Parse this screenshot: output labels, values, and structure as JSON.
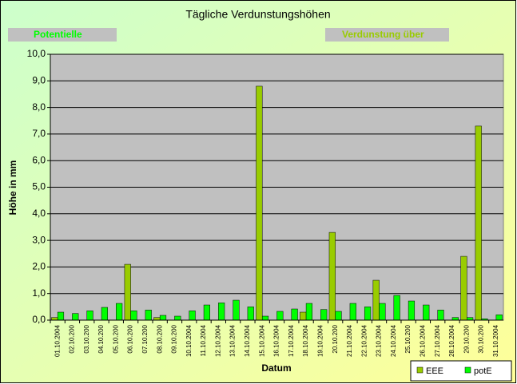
{
  "chart_data": {
    "type": "bar",
    "title": "Tägliche Verdunstungshöhen",
    "annotations": [
      "Potentielle",
      "Verdunstung über"
    ],
    "x_label": "Datum",
    "y_label": "Höhe in mm",
    "categories": [
      "01.10.2004",
      "02.10.200",
      "03.10.200",
      "04.10.200",
      "05.10.200",
      "06.10.200",
      "07.10.200",
      "08.10.200",
      "09.10.200",
      "10.10.2004",
      "11.10.2004",
      "12.10.2004",
      "13.10.2004",
      "14.10.2004",
      "15.10.2004",
      "16.10.2004",
      "17.10.2004",
      "18.10.2004",
      "19.10.2004",
      "20.10.200",
      "21.10.2004",
      "22.10.2004",
      "23.10.2004",
      "24.10.2004",
      "25.10.200",
      "26.10.2004",
      "27.10.2004",
      "28.10.2004",
      "29.10.200",
      "30.10.200",
      "31.10.2004"
    ],
    "series": [
      {
        "name": "EEE",
        "color": "#99cc00",
        "values": [
          0.1,
          0,
          0,
          0,
          0,
          2.1,
          0,
          0.1,
          0,
          0,
          0,
          0,
          0,
          0,
          8.8,
          0,
          0,
          0.3,
          0,
          3.3,
          0,
          0,
          1.5,
          0,
          0,
          0,
          0,
          0,
          2.4,
          7.3,
          0
        ]
      },
      {
        "name": "potE",
        "color": "#00ff00",
        "values": [
          0.3,
          0.25,
          0.35,
          0.48,
          0.63,
          0.35,
          0.38,
          0.18,
          0.15,
          0.35,
          0.57,
          0.65,
          0.75,
          0.5,
          0.15,
          0.33,
          0.42,
          0.63,
          0.4,
          0.33,
          0.63,
          0.5,
          0.63,
          0.93,
          0.72,
          0.57,
          0.38,
          0.1,
          0.1,
          0.05,
          0.2
        ]
      }
    ],
    "ylim": [
      0,
      10
    ],
    "yticks": [
      {
        "value": 0,
        "label": "0,0"
      },
      {
        "value": 1,
        "label": "1,0"
      },
      {
        "value": 2,
        "label": "2,0"
      },
      {
        "value": 3,
        "label": "3,0"
      },
      {
        "value": 4,
        "label": "4,0"
      },
      {
        "value": 5,
        "label": "5,0"
      },
      {
        "value": 6,
        "label": "6,0"
      },
      {
        "value": 7,
        "label": "7,0"
      },
      {
        "value": 8,
        "label": "8,0"
      },
      {
        "value": 9,
        "label": "9,0"
      },
      {
        "value": 10,
        "label": "10,0"
      }
    ],
    "grid": true,
    "legend": "bottom-right"
  }
}
